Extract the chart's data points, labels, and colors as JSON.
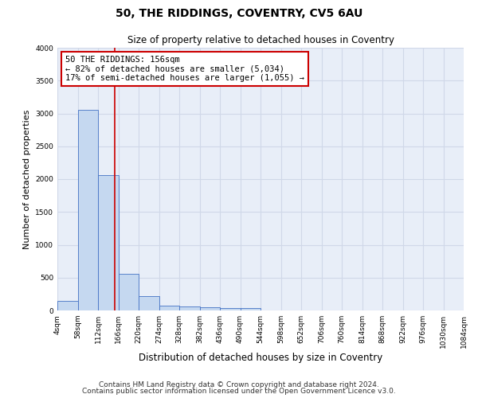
{
  "title1": "50, THE RIDDINGS, COVENTRY, CV5 6AU",
  "title2": "Size of property relative to detached houses in Coventry",
  "xlabel": "Distribution of detached houses by size in Coventry",
  "ylabel": "Number of detached properties",
  "annotation_line1": "50 THE RIDDINGS: 156sqm",
  "annotation_line2": "← 82% of detached houses are smaller (5,034)",
  "annotation_line3": "17% of semi-detached houses are larger (1,055) →",
  "footer1": "Contains HM Land Registry data © Crown copyright and database right 2024.",
  "footer2": "Contains public sector information licensed under the Open Government Licence v3.0.",
  "bin_edges": [
    4,
    58,
    112,
    166,
    220,
    274,
    328,
    382,
    436,
    490,
    544,
    598,
    652,
    706,
    760,
    814,
    868,
    922,
    976,
    1030,
    1084
  ],
  "bar_heights": [
    140,
    3060,
    2060,
    560,
    220,
    70,
    55,
    45,
    40,
    40,
    0,
    0,
    0,
    0,
    0,
    0,
    0,
    0,
    0,
    0
  ],
  "bar_color": "#c5d8f0",
  "bar_edge_color": "#4472c4",
  "red_line_x": 156,
  "ylim": [
    0,
    4000
  ],
  "yticks": [
    0,
    500,
    1000,
    1500,
    2000,
    2500,
    3000,
    3500,
    4000
  ],
  "bg_color": "#e8eef8",
  "grid_color": "#d0d8e8",
  "annotation_box_color": "#ffffff",
  "annotation_box_edge": "#cc0000",
  "annotation_text_size": 7.5,
  "title1_size": 10,
  "title2_size": 8.5,
  "xlabel_size": 8.5,
  "ylabel_size": 8,
  "footer_size": 6.5,
  "tick_label_size": 6.5
}
